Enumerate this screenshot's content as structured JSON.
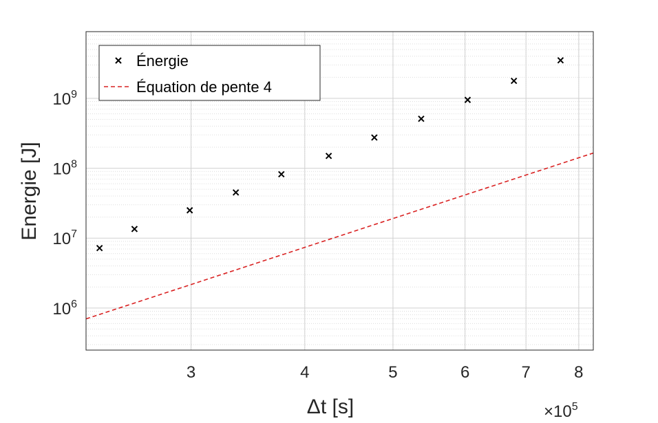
{
  "chart_data": {
    "type": "scatter",
    "xlabel": "Δt [s]",
    "ylabel": "Energie [J]",
    "x_multiplier_label": "×10",
    "x_multiplier_exponent": "5",
    "x_scale": "log",
    "y_scale": "log",
    "xlim": [
      2.3,
      8.3
    ],
    "ylim": [
      250000,
      9000000000
    ],
    "x_ticks": [
      {
        "value": 3,
        "label": "3"
      },
      {
        "value": 4,
        "label": "4"
      },
      {
        "value": 5,
        "label": "5"
      },
      {
        "value": 6,
        "label": "6"
      },
      {
        "value": 7,
        "label": "7"
      },
      {
        "value": 8,
        "label": "8"
      }
    ],
    "y_ticks": [
      {
        "value": 1000000,
        "base": "10",
        "exp": "6"
      },
      {
        "value": 10000000,
        "base": "10",
        "exp": "7"
      },
      {
        "value": 100000000,
        "base": "10",
        "exp": "8"
      },
      {
        "value": 1000000000,
        "base": "10",
        "exp": "9"
      }
    ],
    "grid": true,
    "minor_grid": true,
    "legend_position": "top-left",
    "series": [
      {
        "name": "Énergie",
        "style": "marker-x",
        "color": "#000000",
        "x": [
          2.38,
          2.6,
          2.99,
          3.36,
          3.77,
          4.25,
          4.77,
          5.37,
          6.04,
          6.79,
          7.64
        ],
        "y": [
          7200000,
          13500000,
          25000000,
          45000000,
          82000000,
          150000000,
          275000000,
          510000000,
          950000000,
          1780000000,
          3500000000
        ]
      },
      {
        "name": "Équation de pente 4",
        "style": "dashed-line",
        "color": "#d92020",
        "x": [
          2.3,
          8.3
        ],
        "y": [
          700000,
          165000000
        ]
      }
    ]
  }
}
